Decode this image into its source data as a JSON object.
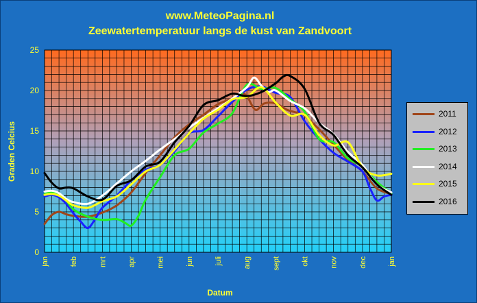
{
  "header": {
    "title": "www.MeteoPagina.nl",
    "subtitle": "Zeewatertemperatuur langs de kust van Zandvoort"
  },
  "colors": {
    "frame_background": "#1c6fc2",
    "title_color": "#ffff33",
    "gradient_top": "#ff6a1f",
    "gradient_mid": "#b0a0b8",
    "gradient_bottom": "#22d0f8",
    "legend_background": "#c0c0c0"
  },
  "chart_data": {
    "type": "line",
    "title": "Zeewatertemperatuur langs de kust van Zandvoort",
    "xlabel": "Datum",
    "ylabel": "Graden Celcius",
    "ylim": [
      0,
      25
    ],
    "yticks": [
      "0",
      "5",
      "10",
      "15",
      "20",
      "25"
    ],
    "xlim": [
      0,
      12
    ],
    "xticks": [
      "jan",
      "feb",
      "mrt",
      "apr",
      "mei",
      "jun",
      "juli",
      "aug",
      "sept",
      "okt",
      "nov",
      "dec",
      "jan"
    ],
    "grid": true,
    "legend_position": "right",
    "series": [
      {
        "name": "2011",
        "color": "#a0461a",
        "x": [
          0,
          0.25,
          0.5,
          0.75,
          1,
          1.5,
          2,
          2.5,
          3,
          3.5,
          4,
          4.5,
          5,
          5.5,
          6,
          6.5,
          6.8,
          7,
          7.3,
          7.6,
          8,
          8.4,
          8.8,
          9,
          9.5,
          10,
          10.5,
          11,
          11.5,
          12
        ],
        "y": [
          3.5,
          4.6,
          5.0,
          4.7,
          4.5,
          4.4,
          4.9,
          5.8,
          7.4,
          9.8,
          12.0,
          14.2,
          15.8,
          17.0,
          18.3,
          19.0,
          19.6,
          19.3,
          17.6,
          18.4,
          18.4,
          17.6,
          17.2,
          16.9,
          15.2,
          13.3,
          11.4,
          10.0,
          7.9,
          7.2
        ]
      },
      {
        "name": "2012",
        "color": "#1a22ff",
        "x": [
          0,
          0.25,
          0.5,
          0.75,
          1,
          1.25,
          1.5,
          1.75,
          2,
          2.5,
          3,
          3.5,
          4,
          4.5,
          5,
          5.5,
          6,
          6.5,
          7,
          7.5,
          8,
          8.5,
          9,
          9.5,
          10,
          10.5,
          11,
          11.25,
          11.5,
          11.75,
          12
        ],
        "y": [
          6.9,
          7.1,
          6.8,
          6.0,
          4.8,
          3.8,
          3.0,
          4.1,
          5.5,
          7.0,
          8.9,
          10.2,
          10.8,
          12.5,
          14.7,
          15.1,
          16.8,
          18.6,
          20.1,
          20.5,
          19.7,
          19.2,
          16.2,
          14.0,
          12.3,
          11.2,
          10.0,
          8.0,
          6.4,
          6.9,
          7.1
        ]
      },
      {
        "name": "2013",
        "color": "#22ee22",
        "x": [
          0,
          0.25,
          0.5,
          0.75,
          1,
          1.5,
          2,
          2.5,
          2.8,
          3,
          3.25,
          3.5,
          4,
          4.5,
          5,
          5.5,
          6,
          6.5,
          7,
          7.5,
          8,
          8.5,
          9,
          9.5,
          10,
          10.5,
          11,
          11.5,
          12
        ],
        "y": [
          7.2,
          7.4,
          7.1,
          6.4,
          5.3,
          4.4,
          4.0,
          4.1,
          3.6,
          3.3,
          4.5,
          6.5,
          9.3,
          12.0,
          12.8,
          14.8,
          15.9,
          17.2,
          20.7,
          20.2,
          20.3,
          18.9,
          17.4,
          14.0,
          13.6,
          11.6,
          10.6,
          8.7,
          7.3
        ]
      },
      {
        "name": "2014",
        "color": "#ffffff",
        "x": [
          0,
          0.25,
          0.5,
          0.75,
          1,
          1.5,
          2,
          2.5,
          3,
          3.5,
          4,
          4.5,
          5,
          5.5,
          6,
          6.5,
          7,
          7.25,
          7.5,
          7.75,
          8,
          8.5,
          9,
          9.5,
          10,
          10.5,
          11,
          11.5,
          12
        ],
        "y": [
          7.5,
          7.6,
          7.3,
          6.6,
          6.2,
          6.0,
          7.0,
          8.5,
          10.0,
          11.3,
          12.7,
          14.0,
          15.4,
          16.6,
          17.8,
          19.0,
          20.4,
          21.6,
          20.6,
          19.8,
          20.0,
          18.7,
          17.8,
          16.0,
          14.6,
          12.4,
          10.8,
          8.4,
          7.4
        ]
      },
      {
        "name": "2015",
        "color": "#ffff1a",
        "x": [
          0,
          0.25,
          0.5,
          0.75,
          1,
          1.5,
          2,
          2.5,
          3,
          3.5,
          4,
          4.5,
          5,
          5.5,
          6,
          6.5,
          7,
          7.5,
          8,
          8.5,
          9,
          9.5,
          10,
          10.5,
          11,
          11.5,
          12
        ],
        "y": [
          7.1,
          7.2,
          7.0,
          6.4,
          5.8,
          5.5,
          6.3,
          6.9,
          8.4,
          10.0,
          10.8,
          12.7,
          14.7,
          16.5,
          17.6,
          18.9,
          19.2,
          20.4,
          18.5,
          16.9,
          17.0,
          14.5,
          13.2,
          13.6,
          10.5,
          9.5,
          9.7
        ]
      },
      {
        "name": "2016",
        "color": "#000000",
        "x": [
          0,
          0.25,
          0.5,
          0.75,
          1,
          1.5,
          2,
          2.5,
          3,
          3.5,
          4,
          4.5,
          5,
          5.5,
          6,
          6.5,
          7,
          7.5,
          8,
          8.25,
          8.5,
          9,
          9.5,
          10,
          10.5,
          11,
          11.5,
          12
        ],
        "y": [
          9.8,
          8.6,
          7.9,
          8.0,
          7.9,
          6.9,
          6.5,
          8.2,
          8.9,
          10.6,
          11.2,
          13.6,
          15.6,
          18.2,
          18.8,
          19.6,
          19.3,
          19.8,
          20.9,
          21.7,
          21.8,
          20.2,
          16.0,
          14.5,
          12.0,
          10.5,
          8.4,
          7.1
        ]
      }
    ]
  }
}
